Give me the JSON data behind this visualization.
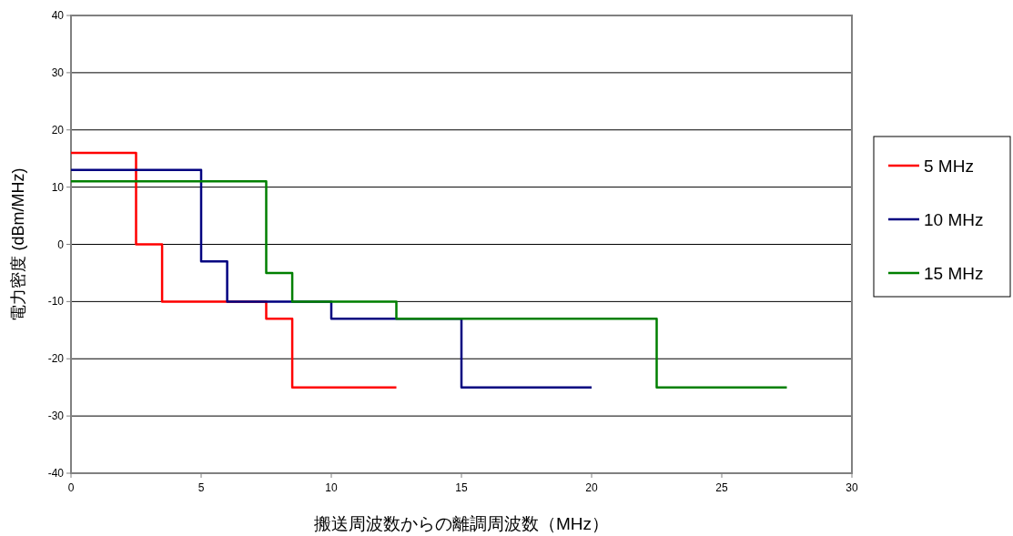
{
  "chart_data": {
    "type": "step",
    "xlabel": "搬送周波数からの離調周波数（MHz）",
    "ylabel": "電力密度 (dBm/MHz)",
    "xlim": [
      0,
      30
    ],
    "ylim": [
      -40,
      40
    ],
    "xticks": [
      0,
      5,
      10,
      15,
      20,
      25,
      30
    ],
    "yticks": [
      -40,
      -30,
      -20,
      -10,
      0,
      10,
      20,
      30,
      40
    ],
    "grid": "y",
    "legend": "right",
    "marker": "none",
    "line_style": "solid",
    "series": [
      {
        "name": "5 MHz",
        "color": "#ff0000",
        "x": [
          0,
          2.5,
          3.5,
          7.5,
          8.5,
          12.5
        ],
        "values": [
          16,
          0,
          -10,
          -13,
          -25,
          -25
        ]
      },
      {
        "name": "10 MHz",
        "color": "#000080",
        "x": [
          0,
          5,
          6,
          10,
          15,
          20
        ],
        "values": [
          13,
          -3,
          -10,
          -13,
          -25,
          -25
        ]
      },
      {
        "name": "15 MHz",
        "color": "#008000",
        "x": [
          0,
          7.5,
          8.5,
          12.5,
          22.5,
          27.5
        ],
        "values": [
          11,
          -5,
          -10,
          -13,
          -25,
          -25
        ]
      }
    ]
  }
}
